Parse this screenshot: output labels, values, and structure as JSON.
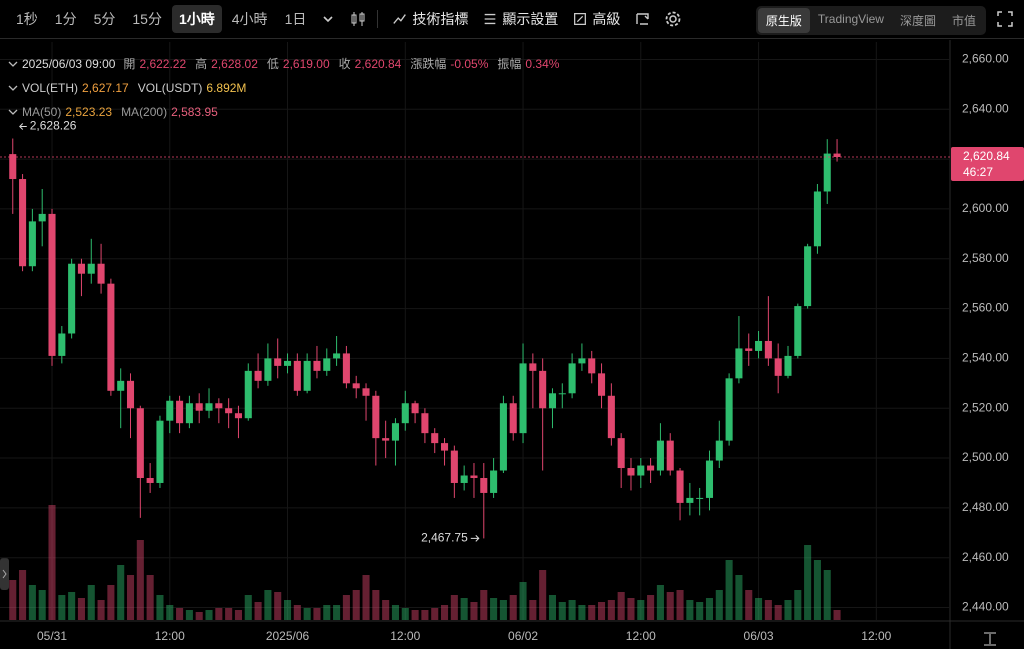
{
  "toolbar": {
    "intervals": [
      "1秒",
      "1分",
      "5分",
      "15分",
      "1小時",
      "4小時",
      "1日"
    ],
    "active_interval": 4,
    "tools": [
      "技術指標",
      "顯示設置",
      "高級"
    ],
    "views": [
      "原生版",
      "TradingView",
      "深度圖",
      "市值"
    ],
    "active_view": 0
  },
  "info": {
    "time": "2025/06/03 09:00",
    "ohlc": [
      {
        "label": "開",
        "value": "2,622.22"
      },
      {
        "label": "高",
        "value": "2,628.02"
      },
      {
        "label": "低",
        "value": "2,619.00"
      },
      {
        "label": "收",
        "value": "2,620.84"
      },
      {
        "label": "漲跌幅",
        "value": "-0.05%"
      },
      {
        "label": "振幅",
        "value": "0.34%"
      }
    ],
    "volume": [
      {
        "label": "VOL(ETH)",
        "value": "2,627.17"
      },
      {
        "label": "VOL(USDT)",
        "value": "6.892M"
      }
    ],
    "ma": [
      {
        "label": "MA(50)",
        "value": "2,523.23"
      },
      {
        "label": "MA(200)",
        "value": "2,583.95"
      }
    ]
  },
  "chart_data": {
    "type": "candlestick",
    "up_color": "#2ebd6e",
    "down_color": "#e0466e",
    "open": [
      2622,
      2612,
      2577,
      2595,
      2598,
      2541,
      2550,
      2578,
      2574,
      2578,
      2570,
      2527,
      2531,
      2520,
      2492,
      2490,
      2515,
      2523,
      2514,
      2522,
      2519,
      2522,
      2520,
      2518,
      2516,
      2535,
      2531,
      2540,
      2537,
      2539,
      2527,
      2539,
      2535,
      2540,
      2542,
      2530,
      2528,
      2525,
      2508,
      2507,
      2514,
      2522,
      2518,
      2510,
      2506,
      2503,
      2490,
      2493,
      2492,
      2486,
      2495,
      2522,
      2510,
      2538,
      2535,
      2520,
      2526,
      2526,
      2538,
      2540,
      2534,
      2525,
      2508,
      2496,
      2493,
      2497,
      2495,
      2507,
      2495,
      2482,
      2484,
      2484,
      2499,
      2507,
      2532,
      2544,
      2543,
      2547,
      2540,
      2533,
      2541,
      2561,
      2585,
      2607,
      2622.22
    ],
    "high": [
      2628.26,
      2614,
      2600,
      2608,
      2600,
      2553,
      2580,
      2580,
      2588,
      2586,
      2572,
      2536,
      2534,
      2521,
      2498,
      2517,
      2525,
      2525,
      2525,
      2526,
      2528,
      2524,
      2524,
      2521,
      2538,
      2542,
      2546,
      2548,
      2542,
      2542,
      2542,
      2545,
      2544,
      2549,
      2545,
      2533,
      2530,
      2527,
      2515,
      2516,
      2527,
      2523,
      2520,
      2512,
      2508,
      2505,
      2497,
      2498,
      2498,
      2500,
      2525,
      2525,
      2546,
      2542,
      2540,
      2528,
      2530,
      2542,
      2546,
      2543,
      2538,
      2530,
      2510,
      2500,
      2500,
      2500,
      2514,
      2510,
      2496,
      2490,
      2488,
      2503,
      2515,
      2534,
      2557,
      2550,
      2551,
      2565,
      2546,
      2545,
      2562,
      2586,
      2610,
      2628,
      2628.02
    ],
    "low": [
      2598,
      2575,
      2575,
      2585,
      2537,
      2538,
      2548,
      2565,
      2570,
      2566,
      2525,
      2512,
      2508,
      2476,
      2486,
      2488,
      2510,
      2510,
      2512,
      2514,
      2516,
      2514,
      2512,
      2508,
      2515,
      2528,
      2529,
      2532,
      2534,
      2525,
      2526,
      2532,
      2533,
      2537,
      2528,
      2524,
      2515,
      2497,
      2500,
      2497,
      2511,
      2514,
      2506,
      2502,
      2497,
      2484,
      2487,
      2484,
      2467.75,
      2484,
      2494,
      2507,
      2506,
      2520,
      2495,
      2512,
      2520,
      2524,
      2535,
      2530,
      2520,
      2505,
      2488,
      2487,
      2488,
      2490,
      2493,
      2493,
      2475,
      2477,
      2477,
      2479,
      2496,
      2505,
      2530,
      2537,
      2540,
      2537,
      2526,
      2532,
      2540,
      2560,
      2582,
      2602,
      2619
    ],
    "close": [
      2612,
      2577,
      2595,
      2598,
      2541,
      2550,
      2578,
      2574,
      2578,
      2570,
      2527,
      2531,
      2520,
      2492,
      2490,
      2515,
      2523,
      2514,
      2522,
      2519,
      2522,
      2520,
      2518,
      2516,
      2535,
      2531,
      2540,
      2537,
      2539,
      2527,
      2539,
      2535,
      2540,
      2542,
      2530,
      2528,
      2525,
      2508,
      2507,
      2514,
      2522,
      2518,
      2510,
      2506,
      2503,
      2490,
      2493,
      2492,
      2486,
      2495,
      2522,
      2510,
      2538,
      2535,
      2520,
      2526,
      2526,
      2538,
      2540,
      2534,
      2525,
      2508,
      2496,
      2493,
      2497,
      2495,
      2507,
      2495,
      2482,
      2484,
      2484,
      2499,
      2507,
      2532,
      2544,
      2543,
      2547,
      2540,
      2533,
      2541,
      2561,
      2585,
      2607,
      2622.22,
      2620.84
    ],
    "volume": [
      40,
      50,
      35,
      30,
      115,
      25,
      28,
      22,
      35,
      20,
      35,
      55,
      45,
      80,
      45,
      25,
      15,
      12,
      10,
      8,
      10,
      12,
      12,
      10,
      25,
      18,
      30,
      28,
      20,
      15,
      12,
      12,
      15,
      15,
      25,
      30,
      45,
      30,
      20,
      15,
      12,
      10,
      10,
      12,
      15,
      25,
      22,
      18,
      30,
      22,
      20,
      25,
      38,
      20,
      50,
      25,
      18,
      20,
      15,
      15,
      18,
      20,
      28,
      22,
      20,
      25,
      35,
      28,
      30,
      20,
      18,
      22,
      30,
      60,
      45,
      30,
      22,
      20,
      15,
      20,
      30,
      75,
      60,
      50,
      10
    ],
    "xlim": [
      -1.3,
      95
    ],
    "ylim": [
      2435,
      2667
    ],
    "xticks": [
      {
        "value": 4,
        "label": "05/31"
      },
      {
        "value": 16,
        "label": "12:00"
      },
      {
        "value": 28,
        "label": "2025/06"
      },
      {
        "value": 40,
        "label": "12:00"
      },
      {
        "value": 52,
        "label": "06/02"
      },
      {
        "value": 64,
        "label": "12:00"
      },
      {
        "value": 76,
        "label": "06/03"
      },
      {
        "value": 88,
        "label": "12:00"
      }
    ],
    "yticks": [
      {
        "value": 2440,
        "label": "2,440.00"
      },
      {
        "value": 2460,
        "label": "2,460.00"
      },
      {
        "value": 2480,
        "label": "2,480.00"
      },
      {
        "value": 2500,
        "label": "2,500.00"
      },
      {
        "value": 2520,
        "label": "2,520.00"
      },
      {
        "value": 2540,
        "label": "2,540.00"
      },
      {
        "value": 2560,
        "label": "2,560.00"
      },
      {
        "value": 2580,
        "label": "2,580.00"
      },
      {
        "value": 2600,
        "label": "2,600.00"
      },
      {
        "value": 2620,
        "label": "2,620.00"
      },
      {
        "value": 2640,
        "label": "2,640.00"
      },
      {
        "value": 2660,
        "label": "2,660.00"
      }
    ],
    "grid": true,
    "high_label": "2,628.26",
    "low_label": "2,467.75",
    "price_tag": {
      "price": "2,620.84",
      "countdown": "46:27"
    }
  }
}
